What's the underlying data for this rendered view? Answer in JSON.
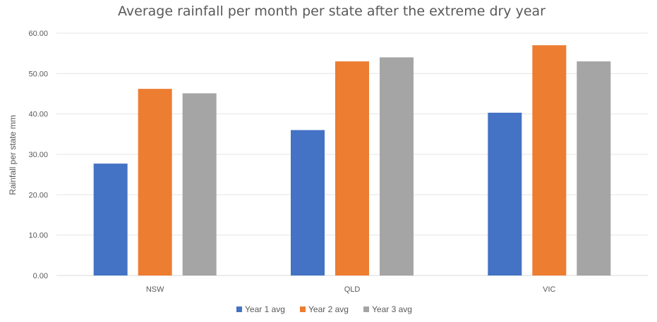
{
  "chart_data": {
    "type": "bar",
    "title": "Average rainfall per month per state after the extreme dry year",
    "xlabel": "",
    "ylabel": "Rainfall per state mm",
    "categories": [
      "NSW",
      "QLD",
      "VIC"
    ],
    "series": [
      {
        "name": "Year 1 avg",
        "color": "#4472C4",
        "values": [
          27.7,
          36.0,
          40.3
        ]
      },
      {
        "name": "Year 2 avg",
        "color": "#ED7D31",
        "values": [
          46.2,
          53.0,
          57.0
        ]
      },
      {
        "name": "Year 3 avg",
        "color": "#A5A5A5",
        "values": [
          45.1,
          54.0,
          53.0
        ]
      }
    ],
    "ylim": [
      0,
      60
    ],
    "yticks": [
      "0.00",
      "10.00",
      "20.00",
      "30.00",
      "40.00",
      "50.00",
      "60.00"
    ],
    "grid": true,
    "legend_position": "bottom"
  }
}
